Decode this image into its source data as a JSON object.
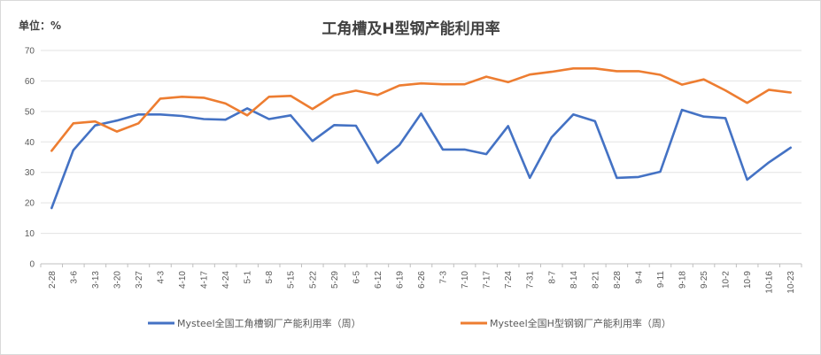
{
  "chart_data": {
    "type": "line",
    "title": "工角槽及H型钢产能利用率",
    "unit_label": "单位：%",
    "ylim": [
      0,
      70
    ],
    "yticks": [
      "0",
      "10",
      "20",
      "30",
      "40",
      "50",
      "60",
      "70"
    ],
    "grid": true,
    "legend_position": "bottom",
    "categories": [
      "2-28",
      "3-6",
      "3-13",
      "3-20",
      "3-27",
      "4-3",
      "4-10",
      "4-17",
      "4-24",
      "5-1",
      "5-8",
      "5-15",
      "5-22",
      "5-29",
      "6-5",
      "6-12",
      "6-19",
      "6-26",
      "7-3",
      "7-10",
      "7-17",
      "7-24",
      "7-31",
      "8-7",
      "8-14",
      "8-21",
      "8-28",
      "9-4",
      "9-11",
      "9-18",
      "9-25",
      "10-2",
      "10-9",
      "10-16",
      "10-23"
    ],
    "series": [
      {
        "name": "Mysteel全国工角槽钢厂产能利用率（周）",
        "color": "#4472c4",
        "values": [
          18.3,
          37.3,
          45.4,
          47.0,
          49.0,
          49.0,
          48.5,
          47.5,
          47.3,
          51.0,
          47.5,
          48.7,
          40.3,
          45.5,
          45.3,
          33.1,
          39.0,
          49.3,
          37.5,
          37.5,
          36.0,
          45.2,
          28.2,
          41.5,
          49.0,
          46.8,
          28.2,
          28.5,
          30.2,
          50.5,
          48.3,
          47.8,
          27.6,
          33.3,
          38.1
        ]
      },
      {
        "name": "Mysteel全国H型钢钢厂产能利用率（周）",
        "color": "#ed7d31",
        "values": [
          37.1,
          46.1,
          46.7,
          43.4,
          46.1,
          54.2,
          54.8,
          54.5,
          52.6,
          48.7,
          54.8,
          55.1,
          50.8,
          55.3,
          56.8,
          55.4,
          58.5,
          59.2,
          58.9,
          58.9,
          61.4,
          59.6,
          62.1,
          63.0,
          64.1,
          64.1,
          63.2,
          63.2,
          62.0,
          58.8,
          60.5,
          56.9,
          52.8,
          57.1,
          56.2
        ]
      }
    ]
  }
}
